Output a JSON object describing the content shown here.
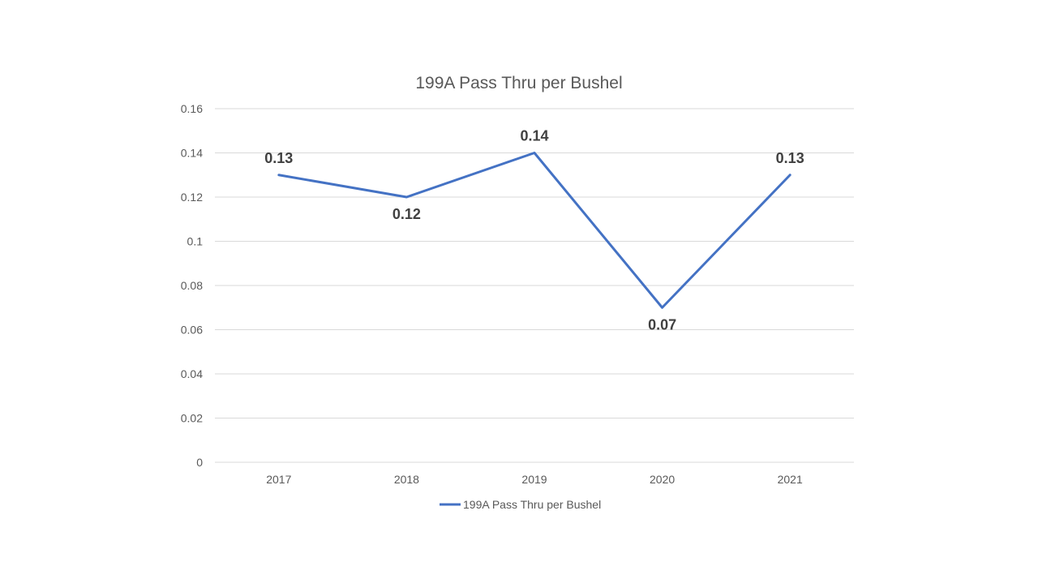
{
  "chart_data": {
    "type": "line",
    "title": "199A Pass Thru per Bushel",
    "categories": [
      "2017",
      "2018",
      "2019",
      "2020",
      "2021"
    ],
    "series": [
      {
        "name": "199A Pass Thru per Bushel",
        "values": [
          0.13,
          0.12,
          0.14,
          0.07,
          0.13
        ],
        "labels": [
          "0.13",
          "0.12",
          "0.14",
          "0.07",
          "0.13"
        ]
      }
    ],
    "y_ticks": [
      "0",
      "0.02",
      "0.04",
      "0.06",
      "0.08",
      "0.1",
      "0.12",
      "0.14",
      "0.16"
    ],
    "ylim": [
      0,
      0.16
    ],
    "xlabel": "",
    "ylabel": "",
    "grid": true,
    "legend_position": "bottom",
    "colors": {
      "line": "#4472c4"
    }
  }
}
